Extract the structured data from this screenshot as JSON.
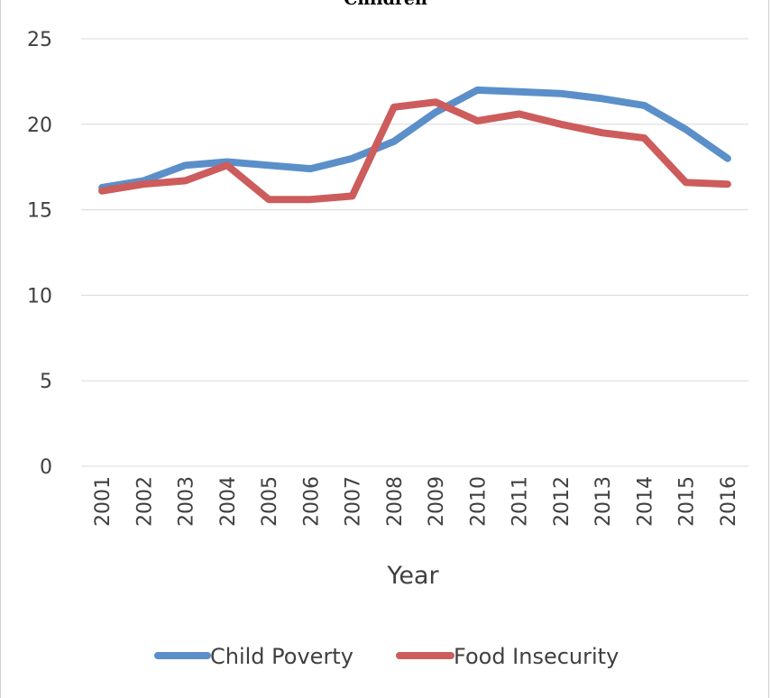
{
  "chart_data": {
    "type": "line",
    "title": "Children",
    "xlabel": "Year",
    "ylabel": "",
    "x": [
      "2001",
      "2002",
      "2003",
      "2004",
      "2005",
      "2006",
      "2007",
      "2008",
      "2009",
      "2010",
      "2011",
      "2012",
      "2013",
      "2014",
      "2015",
      "2016"
    ],
    "ylim": [
      0,
      25
    ],
    "yticks": [
      0,
      5,
      10,
      15,
      20,
      25
    ],
    "grid": true,
    "legend_position": "bottom",
    "series": [
      {
        "name": "Child Poverty",
        "color": "#5b8fc9",
        "values": [
          16.3,
          16.7,
          17.6,
          17.8,
          17.6,
          17.4,
          18.0,
          19.0,
          20.7,
          22.0,
          21.9,
          21.8,
          21.5,
          21.1,
          19.7,
          18.0
        ]
      },
      {
        "name": "Food Insecurity",
        "color": "#cd5c5c",
        "values": [
          16.1,
          16.5,
          16.7,
          17.6,
          15.6,
          15.6,
          15.8,
          21.0,
          21.3,
          20.2,
          20.6,
          20.0,
          19.5,
          19.2,
          16.6,
          16.5
        ]
      }
    ]
  }
}
